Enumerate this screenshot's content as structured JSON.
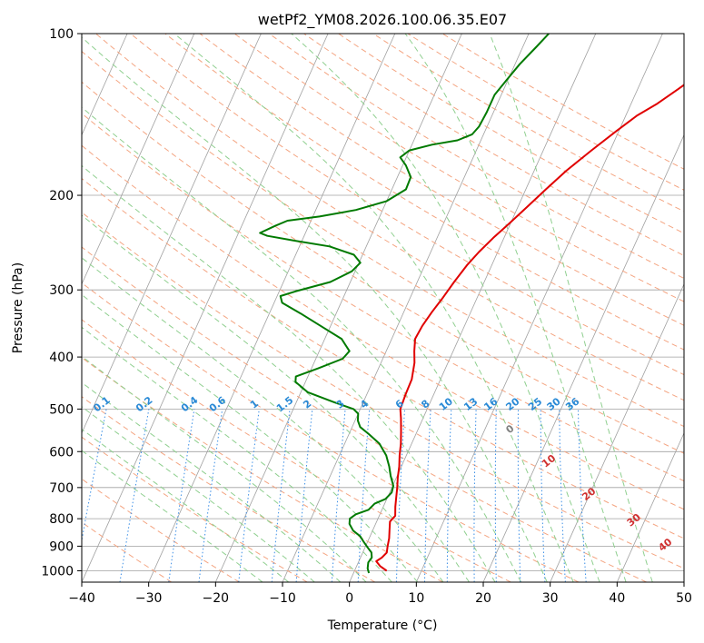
{
  "chart_data": {
    "type": "line",
    "title": "wetPf2_YM08.2026.100.06.35.E07",
    "xlabel": "Temperature (°C)",
    "ylabel": "Pressure (hPa)",
    "xlim": [
      -40,
      50
    ],
    "ylim": [
      1050,
      100
    ],
    "yscale": "log",
    "grid": true,
    "x_ticks": [
      -40,
      -30,
      -20,
      -10,
      0,
      10,
      20,
      30,
      40,
      50
    ],
    "x_tick_labels": [
      "−40",
      "−30",
      "−20",
      "−10",
      "0",
      "10",
      "20",
      "30",
      "40",
      "50"
    ],
    "y_ticks": [
      100,
      200,
      300,
      400,
      500,
      600,
      700,
      800,
      900,
      1000
    ],
    "y_tick_labels": [
      "100",
      "200",
      "300",
      "400",
      "500",
      "600",
      "700",
      "800",
      "900",
      "1000"
    ],
    "colors": {
      "temperature": "#e00000",
      "dewpoint": "#007a00",
      "isotherm": "#a0a0a0",
      "dry_adiabat": "#f4a582",
      "moist_adiabat": "#8fcf8f",
      "mixing_ratio": "#3a8ee6",
      "dry_label": "#1f5fa0",
      "mixing_label": "#2a8ad6",
      "moist_label": "#d03030"
    },
    "series": [
      {
        "key": "temperature",
        "points": [
          [
            4.8,
            1000
          ],
          [
            3.5,
            980
          ],
          [
            2.6,
            960
          ],
          [
            3.2,
            945
          ],
          [
            3.6,
            925
          ],
          [
            3.3,
            900
          ],
          [
            3.0,
            870
          ],
          [
            2.5,
            840
          ],
          [
            2.0,
            810
          ],
          [
            2.4,
            790
          ],
          [
            1.8,
            760
          ],
          [
            1.3,
            730
          ],
          [
            0.8,
            700
          ],
          [
            0.2,
            670
          ],
          [
            -0.3,
            640
          ],
          [
            -1.0,
            610
          ],
          [
            -1.6,
            580
          ],
          [
            -2.4,
            550
          ],
          [
            -3.3,
            520
          ],
          [
            -4.0,
            500
          ],
          [
            -4.2,
            470
          ],
          [
            -4.3,
            440
          ],
          [
            -5.0,
            410
          ],
          [
            -5.8,
            390
          ],
          [
            -6.5,
            370
          ],
          [
            -6.3,
            350
          ],
          [
            -5.8,
            330
          ],
          [
            -5.1,
            310
          ],
          [
            -4.5,
            290
          ],
          [
            -3.7,
            270
          ],
          [
            -2.8,
            255
          ],
          [
            -1.6,
            240
          ],
          [
            -0.1,
            225
          ],
          [
            1.4,
            210
          ],
          [
            3.0,
            195
          ],
          [
            4.8,
            180
          ],
          [
            7.2,
            165
          ],
          [
            9.6,
            152
          ],
          [
            11.7,
            142
          ],
          [
            13.9,
            135
          ],
          [
            16.0,
            127
          ],
          [
            17.9,
            120
          ],
          [
            19.8,
            113
          ],
          [
            21.1,
            107
          ],
          [
            21.9,
            100
          ]
        ]
      },
      {
        "key": "dewpoint",
        "points": [
          [
            2.3,
            1010
          ],
          [
            1.8,
            990
          ],
          [
            1.5,
            965
          ],
          [
            1.7,
            945
          ],
          [
            1.3,
            925
          ],
          [
            0.4,
            905
          ],
          [
            -0.5,
            885
          ],
          [
            -1.5,
            862
          ],
          [
            -2.9,
            842
          ],
          [
            -3.9,
            818
          ],
          [
            -4.2,
            800
          ],
          [
            -3.6,
            785
          ],
          [
            -2.0,
            770
          ],
          [
            -1.5,
            750
          ],
          [
            -0.2,
            735
          ],
          [
            0.3,
            715
          ],
          [
            0.1,
            695
          ],
          [
            -1.0,
            665
          ],
          [
            -1.8,
            640
          ],
          [
            -3.0,
            610
          ],
          [
            -4.8,
            580
          ],
          [
            -7.0,
            557
          ],
          [
            -8.8,
            540
          ],
          [
            -9.6,
            525
          ],
          [
            -10.0,
            510
          ],
          [
            -11.0,
            500
          ],
          [
            -14.5,
            485
          ],
          [
            -19.0,
            465
          ],
          [
            -21.5,
            445
          ],
          [
            -21.8,
            435
          ],
          [
            -19.0,
            420
          ],
          [
            -16.0,
            403
          ],
          [
            -15.5,
            390
          ],
          [
            -17.5,
            370
          ],
          [
            -21.5,
            350
          ],
          [
            -25.3,
            332
          ],
          [
            -28.8,
            317
          ],
          [
            -29.5,
            308
          ],
          [
            -27.6,
            302
          ],
          [
            -23.0,
            290
          ],
          [
            -20.5,
            277
          ],
          [
            -19.8,
            267
          ],
          [
            -21.3,
            258
          ],
          [
            -25.5,
            249
          ],
          [
            -31.0,
            243
          ],
          [
            -35.5,
            238
          ],
          [
            -36.8,
            235
          ],
          [
            -35.0,
            228
          ],
          [
            -33.5,
            223
          ],
          [
            -29.0,
            219
          ],
          [
            -24.0,
            213
          ],
          [
            -20.0,
            205
          ],
          [
            -17.9,
            195
          ],
          [
            -18.0,
            185
          ],
          [
            -19.5,
            176
          ],
          [
            -20.9,
            170
          ],
          [
            -20.0,
            165
          ],
          [
            -17.0,
            161
          ],
          [
            -13.5,
            158
          ],
          [
            -11.7,
            154
          ],
          [
            -11.2,
            149
          ],
          [
            -11.0,
            140
          ],
          [
            -11.0,
            130
          ],
          [
            -10.2,
            122
          ],
          [
            -9.3,
            114
          ],
          [
            -8.0,
            106
          ],
          [
            -7.0,
            100
          ]
        ]
      }
    ],
    "annotations": {
      "dry_adiabats": [
        "-100",
        "-90",
        "-80",
        "-70",
        "-60",
        "-50",
        "-40",
        "-30",
        "-20",
        "-10"
      ],
      "mixing_ratios": [
        "0.1",
        "0.2",
        "0.4",
        "0.6",
        "1",
        "1.5",
        "2",
        "3",
        "4",
        "6",
        "8",
        "10",
        "13",
        "16",
        "20",
        "25",
        "30",
        "36"
      ],
      "moist_adiabats": [
        "0",
        "10",
        "20",
        "30",
        "40"
      ]
    }
  }
}
